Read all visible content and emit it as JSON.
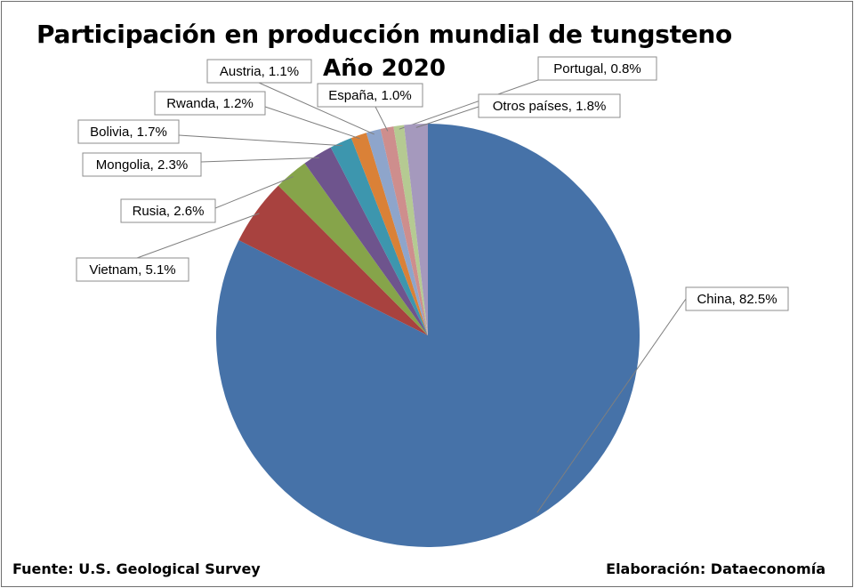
{
  "chart_data": {
    "type": "pie",
    "title": "Participación en producción mundial de tungsteno",
    "subtitle": "Año 2020",
    "slices": [
      {
        "label": "China",
        "value": 82.5,
        "display": "China, 82.5%",
        "color": "#4672A8"
      },
      {
        "label": "Vietnam",
        "value": 5.1,
        "display": "Vietnam, 5.1%",
        "color": "#A8423F"
      },
      {
        "label": "Rusia",
        "value": 2.6,
        "display": "Rusia, 2.6%",
        "color": "#86A44A"
      },
      {
        "label": "Mongolia",
        "value": 2.3,
        "display": "Mongolia, 2.3%",
        "color": "#6E548D"
      },
      {
        "label": "Bolivia",
        "value": 1.7,
        "display": "Bolivia, 1.7%",
        "color": "#3D96AE"
      },
      {
        "label": "Rwanda",
        "value": 1.2,
        "display": "Rwanda, 1.2%",
        "color": "#DA8137"
      },
      {
        "label": "Austria",
        "value": 1.1,
        "display": "Austria, 1.1%",
        "color": "#8EA5CB"
      },
      {
        "label": "España",
        "value": 1.0,
        "display": "España, 1.0%",
        "color": "#CE8E8D"
      },
      {
        "label": "Portugal",
        "value": 0.8,
        "display": "Portugal, 0.8%",
        "color": "#B5CA92"
      },
      {
        "label": "Otros países",
        "value": 1.8,
        "display": "Otros países, 1.8%",
        "color": "#A599BD"
      }
    ]
  },
  "footer": {
    "source": "Fuente: U.S. Geological Survey",
    "credit": "Elaboración: Dataeconomía"
  }
}
